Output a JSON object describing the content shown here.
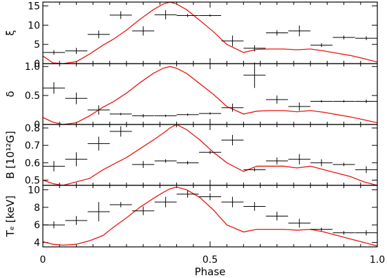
{
  "chart_data": {
    "type": "scatter",
    "xlabel": "Phase",
    "xlim": [
      0,
      1.0
    ],
    "xticks": [
      0,
      0.5,
      1.0
    ],
    "xticklabels": [
      "0",
      "0.5",
      "1.0"
    ],
    "colors": {
      "data": "#000000",
      "model": "#e8150d"
    },
    "panels": [
      {
        "ylabel": "ξ",
        "ylim": [
          0,
          16
        ],
        "yticks": [
          0,
          5,
          10,
          15
        ],
        "yticklabels": [
          "0",
          "5",
          "10",
          "15"
        ],
        "points": [
          {
            "x": 0.033,
            "y": 2.9,
            "xerr": 0.033,
            "yerr": 0.6
          },
          {
            "x": 0.1,
            "y": 3.3,
            "xerr": 0.033,
            "yerr": 0.8
          },
          {
            "x": 0.167,
            "y": 7.6,
            "xerr": 0.033,
            "yerr": 1.0
          },
          {
            "x": 0.233,
            "y": 12.6,
            "xerr": 0.033,
            "yerr": 1.0
          },
          {
            "x": 0.3,
            "y": 8.5,
            "xerr": 0.033,
            "yerr": 1.2
          },
          {
            "x": 0.367,
            "y": 12.7,
            "xerr": 0.033,
            "yerr": 1.2
          },
          {
            "x": 0.433,
            "y": 12.5,
            "xerr": 0.033,
            "yerr": 0.4
          },
          {
            "x": 0.5,
            "y": 12.5,
            "xerr": 0.033,
            "yerr": 0.3
          },
          {
            "x": 0.567,
            "y": 5.9,
            "xerr": 0.033,
            "yerr": 1.4
          },
          {
            "x": 0.633,
            "y": 4.0,
            "xerr": 0.033,
            "yerr": 0.8
          },
          {
            "x": 0.7,
            "y": 8.0,
            "xerr": 0.033,
            "yerr": 0.7
          },
          {
            "x": 0.767,
            "y": 8.5,
            "xerr": 0.033,
            "yerr": 1.4
          },
          {
            "x": 0.833,
            "y": 4.8,
            "xerr": 0.033,
            "yerr": 0.5
          },
          {
            "x": 0.9,
            "y": 6.8,
            "xerr": 0.033,
            "yerr": 0.5
          },
          {
            "x": 0.967,
            "y": 6.6,
            "xerr": 0.033,
            "yerr": 0.5
          }
        ],
        "curve_y": [
          2.0,
          0.2,
          0.0,
          0.5,
          2.5,
          4.8,
          6.3,
          8.7,
          11.5,
          14.0,
          15.5,
          16.0,
          15.5,
          14.0,
          11.2,
          8.3,
          5.0,
          2.9,
          3.7,
          3.8,
          3.8,
          3.6,
          3.8,
          3.3,
          2.7,
          2.1,
          1.3,
          0.4
        ]
      },
      {
        "ylabel": "δ",
        "ylim": [
          0,
          1.05
        ],
        "yticks": [
          0,
          0.5,
          1.0
        ],
        "yticklabels": [
          "0",
          "0.5",
          "1.0"
        ],
        "points": [
          {
            "x": 0.033,
            "y": 0.63,
            "xerr": 0.033,
            "yerr": 0.1
          },
          {
            "x": 0.1,
            "y": 0.45,
            "xerr": 0.033,
            "yerr": 0.1
          },
          {
            "x": 0.167,
            "y": 0.25,
            "xerr": 0.033,
            "yerr": 0.08
          },
          {
            "x": 0.233,
            "y": 0.18,
            "xerr": 0.033,
            "yerr": 0.02
          },
          {
            "x": 0.3,
            "y": 0.15,
            "xerr": 0.033,
            "yerr": 0.03
          },
          {
            "x": 0.367,
            "y": 0.15,
            "xerr": 0.033,
            "yerr": 0.02
          },
          {
            "x": 0.433,
            "y": 0.17,
            "xerr": 0.033,
            "yerr": 0.02
          },
          {
            "x": 0.5,
            "y": 0.19,
            "xerr": 0.033,
            "yerr": 0.02
          },
          {
            "x": 0.567,
            "y": 0.29,
            "xerr": 0.033,
            "yerr": 0.07
          },
          {
            "x": 0.633,
            "y": 0.85,
            "xerr": 0.033,
            "yerr": 0.22
          },
          {
            "x": 0.7,
            "y": 0.43,
            "xerr": 0.033,
            "yerr": 0.07
          },
          {
            "x": 0.767,
            "y": 0.31,
            "xerr": 0.033,
            "yerr": 0.07
          },
          {
            "x": 0.833,
            "y": 0.4,
            "xerr": 0.033,
            "yerr": 0.02
          },
          {
            "x": 0.9,
            "y": 0.4,
            "xerr": 0.033,
            "yerr": 0.02
          },
          {
            "x": 0.967,
            "y": 0.4,
            "xerr": 0.033,
            "yerr": 0.03
          }
        ],
        "curve_y": [
          0.12,
          0.04,
          0.0,
          0.03,
          0.15,
          0.3,
          0.39,
          0.54,
          0.72,
          0.88,
          0.97,
          1.0,
          0.97,
          0.88,
          0.7,
          0.52,
          0.31,
          0.18,
          0.23,
          0.24,
          0.24,
          0.22,
          0.24,
          0.21,
          0.17,
          0.13,
          0.08,
          0.03
        ]
      },
      {
        "ylabel": "B [10¹²G]",
        "ylim": [
          0.47,
          0.82
        ],
        "yticks": [
          0.5,
          0.6,
          0.7,
          0.8
        ],
        "yticklabels": [
          "0.5",
          "0.6",
          "0.7",
          "0.8"
        ],
        "points": [
          {
            "x": 0.033,
            "y": 0.58,
            "xerr": 0.033,
            "yerr": 0.03
          },
          {
            "x": 0.1,
            "y": 0.62,
            "xerr": 0.033,
            "yerr": 0.04
          },
          {
            "x": 0.167,
            "y": 0.71,
            "xerr": 0.033,
            "yerr": 0.04
          },
          {
            "x": 0.233,
            "y": 0.78,
            "xerr": 0.033,
            "yerr": 0.03
          },
          {
            "x": 0.3,
            "y": 0.59,
            "xerr": 0.033,
            "yerr": 0.02
          },
          {
            "x": 0.367,
            "y": 0.61,
            "xerr": 0.033,
            "yerr": 0.01
          },
          {
            "x": 0.433,
            "y": 0.6,
            "xerr": 0.033,
            "yerr": 0.01
          },
          {
            "x": 0.5,
            "y": 0.66,
            "xerr": 0.033,
            "yerr": 0.01
          },
          {
            "x": 0.567,
            "y": 0.73,
            "xerr": 0.033,
            "yerr": 0.03
          },
          {
            "x": 0.633,
            "y": 0.56,
            "xerr": 0.033,
            "yerr": 0.01
          },
          {
            "x": 0.7,
            "y": 0.61,
            "xerr": 0.033,
            "yerr": 0.02
          },
          {
            "x": 0.767,
            "y": 0.62,
            "xerr": 0.033,
            "yerr": 0.03
          },
          {
            "x": 0.833,
            "y": 0.6,
            "xerr": 0.033,
            "yerr": 0.02
          },
          {
            "x": 0.9,
            "y": 0.59,
            "xerr": 0.033,
            "yerr": 0.01
          },
          {
            "x": 0.967,
            "y": 0.56,
            "xerr": 0.033,
            "yerr": 0.02
          }
        ],
        "curve_y": [
          0.5,
          0.48,
          0.47,
          0.49,
          0.51,
          0.56,
          0.59,
          0.63,
          0.68,
          0.73,
          0.77,
          0.8,
          0.82,
          0.79,
          0.73,
          0.66,
          0.6,
          0.55,
          0.58,
          0.58,
          0.58,
          0.57,
          0.58,
          0.56,
          0.54,
          0.52,
          0.49,
          0.47
        ]
      },
      {
        "ylabel": "Tₑ [keV]",
        "ylim": [
          3.5,
          10.5
        ],
        "yticks": [
          4,
          6,
          8,
          10
        ],
        "yticklabels": [
          "4",
          "6",
          "8",
          "10"
        ],
        "points": [
          {
            "x": 0.033,
            "y": 6.0,
            "xerr": 0.033,
            "yerr": 0.4
          },
          {
            "x": 0.1,
            "y": 6.5,
            "xerr": 0.033,
            "yerr": 0.5
          },
          {
            "x": 0.167,
            "y": 7.5,
            "xerr": 0.033,
            "yerr": 1.1
          },
          {
            "x": 0.233,
            "y": 8.3,
            "xerr": 0.033,
            "yerr": 0.3
          },
          {
            "x": 0.3,
            "y": 7.6,
            "xerr": 0.033,
            "yerr": 0.5
          },
          {
            "x": 0.367,
            "y": 8.6,
            "xerr": 0.033,
            "yerr": 0.6
          },
          {
            "x": 0.433,
            "y": 9.5,
            "xerr": 0.033,
            "yerr": 0.4
          },
          {
            "x": 0.5,
            "y": 9.2,
            "xerr": 0.033,
            "yerr": 0.4
          },
          {
            "x": 0.567,
            "y": 8.6,
            "xerr": 0.033,
            "yerr": 0.6
          },
          {
            "x": 0.633,
            "y": 8.1,
            "xerr": 0.033,
            "yerr": 0.5
          },
          {
            "x": 0.7,
            "y": 7.0,
            "xerr": 0.033,
            "yerr": 0.5
          },
          {
            "x": 0.767,
            "y": 6.2,
            "xerr": 0.033,
            "yerr": 0.5
          },
          {
            "x": 0.833,
            "y": 5.5,
            "xerr": 0.033,
            "yerr": 0.2
          },
          {
            "x": 0.9,
            "y": 5.1,
            "xerr": 0.033,
            "yerr": 0.2
          },
          {
            "x": 0.967,
            "y": 5.1,
            "xerr": 0.033,
            "yerr": 0.3
          }
        ],
        "curve_y": [
          4.1,
          3.8,
          3.7,
          3.8,
          4.2,
          4.8,
          5.7,
          6.8,
          8.0,
          9.0,
          9.7,
          10.1,
          10.3,
          10.0,
          9.1,
          7.7,
          6.0,
          5.2,
          5.5,
          5.5,
          5.5,
          5.4,
          5.5,
          5.2,
          4.8,
          4.4,
          4.0,
          3.6
        ]
      }
    ],
    "curve_x": [
      0.0,
      0.03,
      0.06,
      0.1,
      0.14,
      0.18,
      0.21,
      0.25,
      0.29,
      0.33,
      0.36,
      0.38,
      0.4,
      0.43,
      0.47,
      0.51,
      0.55,
      0.6,
      0.64,
      0.68,
      0.72,
      0.76,
      0.8,
      0.84,
      0.88,
      0.92,
      0.96,
      1.0
    ]
  }
}
